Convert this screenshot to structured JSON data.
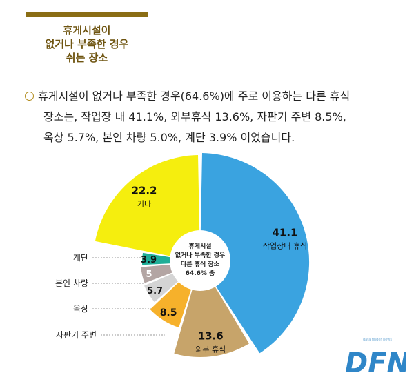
{
  "heading": {
    "lines": [
      "휴게시설이",
      "없거나 부족한 경우",
      "쉬는 장소"
    ]
  },
  "description": {
    "line1": "휴게시설이 없거나 부족한 경우(64.6%)에 주로 이용하는 다른 휴식",
    "line2": "장소는,  작업장 내 41.1%,   외부휴식 13.6%,  자판기 주변 8.5%,",
    "line3": "옥상 5.7%,  본인 차량 5.0%, 계단 3.9% 이었습니다."
  },
  "chart_data": {
    "type": "pie",
    "center_label": [
      "휴게시설",
      "없거나 부족한 경우",
      "다른 휴식 장소",
      "64.6% 중"
    ],
    "slices": [
      {
        "label": "작업장내 휴식",
        "value": 41.1,
        "display": "41.1",
        "color": "#3aa3e0",
        "label_inside": true
      },
      {
        "label": "외부 휴식",
        "value": 13.6,
        "display": "13.6",
        "color": "#c7a46a",
        "label_inside": true
      },
      {
        "label": "자판기 주변",
        "value": 8.5,
        "display": "8.5",
        "color": "#f6b12b",
        "label_inside": false
      },
      {
        "label": "옥상",
        "value": 5.7,
        "display": "5.7",
        "color": "#d4d4d4",
        "label_inside": false
      },
      {
        "label": "본인 차량",
        "value": 5.0,
        "display": "5",
        "color": "#b3a5a3",
        "label_inside": false
      },
      {
        "label": "계단",
        "value": 3.9,
        "display": "3.9",
        "color": "#1fae98",
        "label_inside": false
      },
      {
        "label": "기타",
        "value": 22.2,
        "display": "22.2",
        "color": "#f5ee0e",
        "label_inside": true
      }
    ]
  },
  "logo": {
    "text": "DFN",
    "tagline": "data finder news"
  }
}
